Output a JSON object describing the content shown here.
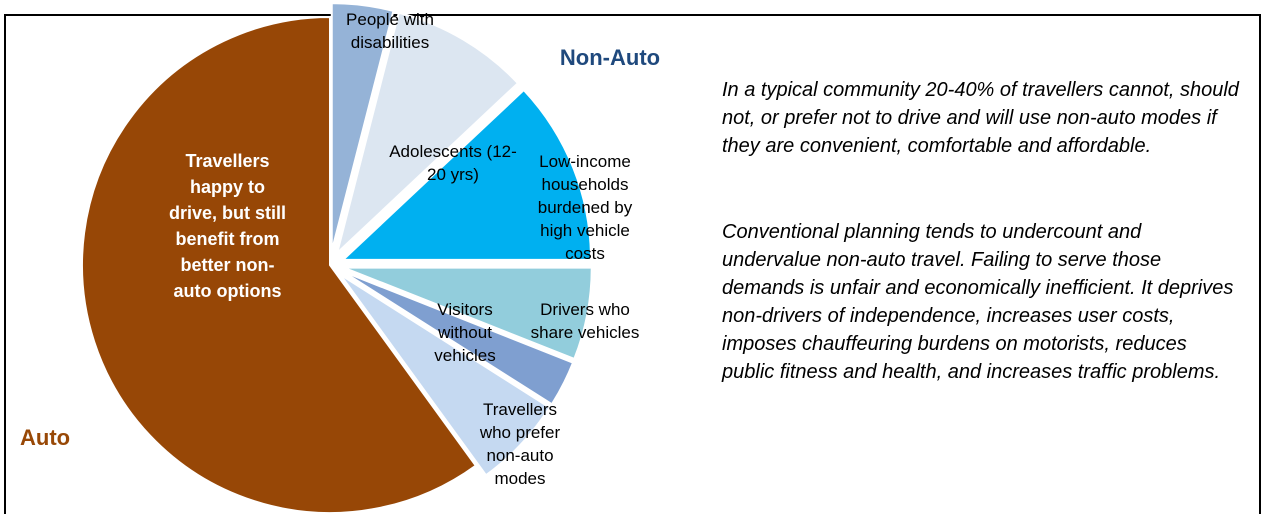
{
  "chart_data": {
    "type": "pie",
    "categories": [
      "People with disabilities",
      "Adolescents (12-20 yrs)",
      "Low-income households burdened by high vehicle costs",
      "Drivers who share vehicles",
      "Visitors without vehicles",
      "Travellers who prefer non-auto modes",
      "Travellers happy to drive, but still benefit from better non-auto options"
    ],
    "values": [
      4,
      9,
      12,
      6,
      3,
      6,
      60
    ],
    "colors": [
      "#95b3d7",
      "#dce6f1",
      "#00b0f0",
      "#92cddc",
      "#7f9fd0",
      "#c5d9f1",
      "#974706"
    ],
    "group_labels": {
      "non_auto": "Non-Auto",
      "auto": "Auto"
    }
  },
  "description": [
    "In a typical community 20-40% of travellers cannot, should not, or prefer not to drive and will use non-auto modes if they are convenient, comfortable and affordable.",
    "Conventional planning tends to undercount and undervalue non-auto travel. Failing to serve those demands is unfair and economically inefficient. It deprives non-drivers of independence, increases user costs, imposes chauffeuring burdens on motorists, reduces public fitness and health, and increases traffic problems."
  ]
}
